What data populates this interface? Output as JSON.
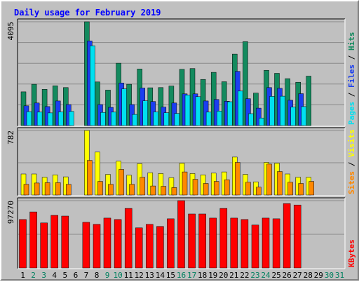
{
  "chart_data": {
    "type": "bar",
    "title": "Daily usage for February 2019",
    "days": [
      "1",
      "2",
      "3",
      "4",
      "5",
      "6",
      "7",
      "8",
      "9",
      "10",
      "11",
      "12",
      "13",
      "14",
      "15",
      "16",
      "17",
      "18",
      "19",
      "20",
      "21",
      "22",
      "23",
      "24",
      "25",
      "26",
      "27",
      "28",
      "29",
      "30",
      "31"
    ],
    "weekend_days": [
      "2",
      "3",
      "9",
      "10",
      "16",
      "17",
      "23",
      "24",
      "30",
      "31"
    ],
    "panels": [
      {
        "name": "hits",
        "max_label": "4095",
        "max": 4095,
        "legend": [
          "Pages",
          "Files",
          "Hits"
        ],
        "series": [
          {
            "name": "Hits",
            "color": "#138a5e",
            "values": [
              1330,
              1630,
              1430,
              1570,
              1500,
              0,
              4095,
              1720,
              1400,
              2460,
              1630,
              2230,
              1490,
              1500,
              1560,
              2220,
              2250,
              1820,
              2100,
              1730,
              2820,
              3310,
              1280,
              2180,
              2060,
              1850,
              1710,
              1950,
              0,
              0,
              0
            ]
          },
          {
            "name": "Files",
            "color": "#1a3ef0",
            "values": [
              780,
              890,
              750,
              970,
              830,
              0,
              3340,
              830,
              720,
              1680,
              830,
              1480,
              950,
              730,
              890,
              1250,
              1250,
              970,
              1030,
              960,
              2140,
              1060,
              690,
              1500,
              1470,
              1000,
              1260,
              0,
              0,
              0,
              0
            ]
          },
          {
            "name": "Pages",
            "color": "#00e0f0",
            "values": [
              550,
              530,
              500,
              540,
              560,
              0,
              3150,
              520,
              530,
              1450,
              440,
              980,
              540,
              510,
              480,
              1200,
              1140,
              530,
              570,
              940,
              1360,
              470,
              300,
              1150,
              1160,
              730,
              750,
              0,
              0,
              0,
              0
            ]
          }
        ]
      },
      {
        "name": "sites",
        "max_label": "782",
        "max": 782,
        "legend": [
          "Sites",
          "Visits"
        ],
        "series": [
          {
            "name": "Visits",
            "color": "#ffff00",
            "values": [
              255,
              255,
              215,
              245,
              220,
              0,
              782,
              520,
              250,
              410,
              240,
              380,
              270,
              260,
              210,
              385,
              260,
              245,
              265,
              280,
              460,
              250,
              160,
              395,
              385,
              255,
              215,
              215,
              0,
              0,
              0
            ]
          },
          {
            "name": "Sites",
            "color": "#ff8800",
            "values": [
              130,
              145,
              150,
              150,
              130,
              0,
              420,
              165,
              130,
              310,
              130,
              215,
              110,
              105,
              90,
              280,
              190,
              140,
              165,
              185,
              395,
              155,
              95,
              375,
              285,
              155,
              140,
              165,
              0,
              0,
              0
            ]
          }
        ]
      },
      {
        "name": "kbytes",
        "max_label": "97270",
        "max": 97270,
        "legend": [
          "KBytes"
        ],
        "series": [
          {
            "name": "KBytes",
            "color": "#ff0000",
            "values": [
              70000,
              81000,
              65000,
              76000,
              75000,
              0,
              66000,
              63000,
              72000,
              70000,
              86000,
              58000,
              63000,
              60000,
              71000,
              97270,
              78000,
              78000,
              72000,
              86000,
              72000,
              70000,
              62000,
              72000,
              71000,
              93000,
              91000,
              0,
              0,
              0,
              0
            ]
          }
        ]
      }
    ]
  },
  "colors": {
    "bg": "#c0c0c0",
    "title": "#0000ff",
    "weekday_label": "#000000",
    "weekend_label": "#00805f",
    "legend_separator": "#000000"
  }
}
